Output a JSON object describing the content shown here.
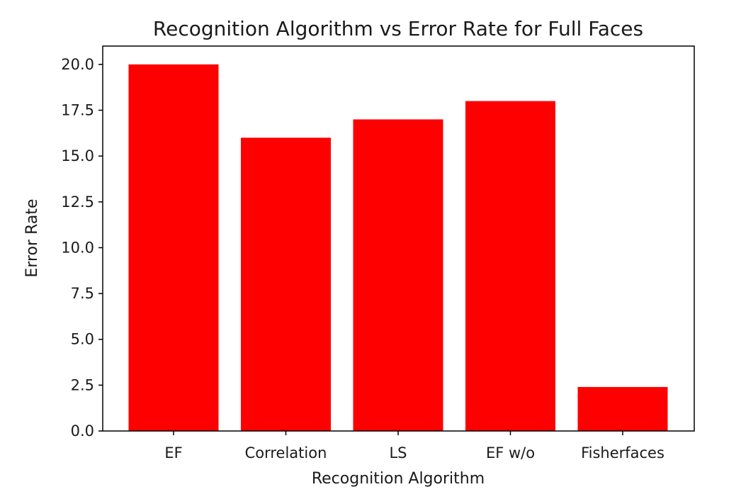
{
  "chart_data": {
    "type": "bar",
    "title": "Recognition Algorithm vs Error Rate for Full Faces",
    "xlabel": "Recognition Algorithm",
    "ylabel": "Error Rate",
    "categories": [
      "EF",
      "Correlation",
      "LS",
      "EF w/o",
      "Fisherfaces"
    ],
    "values": [
      20.0,
      16.0,
      17.0,
      18.0,
      2.4
    ],
    "ylim": [
      0,
      21.0
    ],
    "yticks": [
      "0.0",
      "2.5",
      "5.0",
      "7.5",
      "10.0",
      "12.5",
      "15.0",
      "17.5",
      "20.0"
    ],
    "bar_color": "#ff0000",
    "grid": false,
    "legend": "none"
  }
}
